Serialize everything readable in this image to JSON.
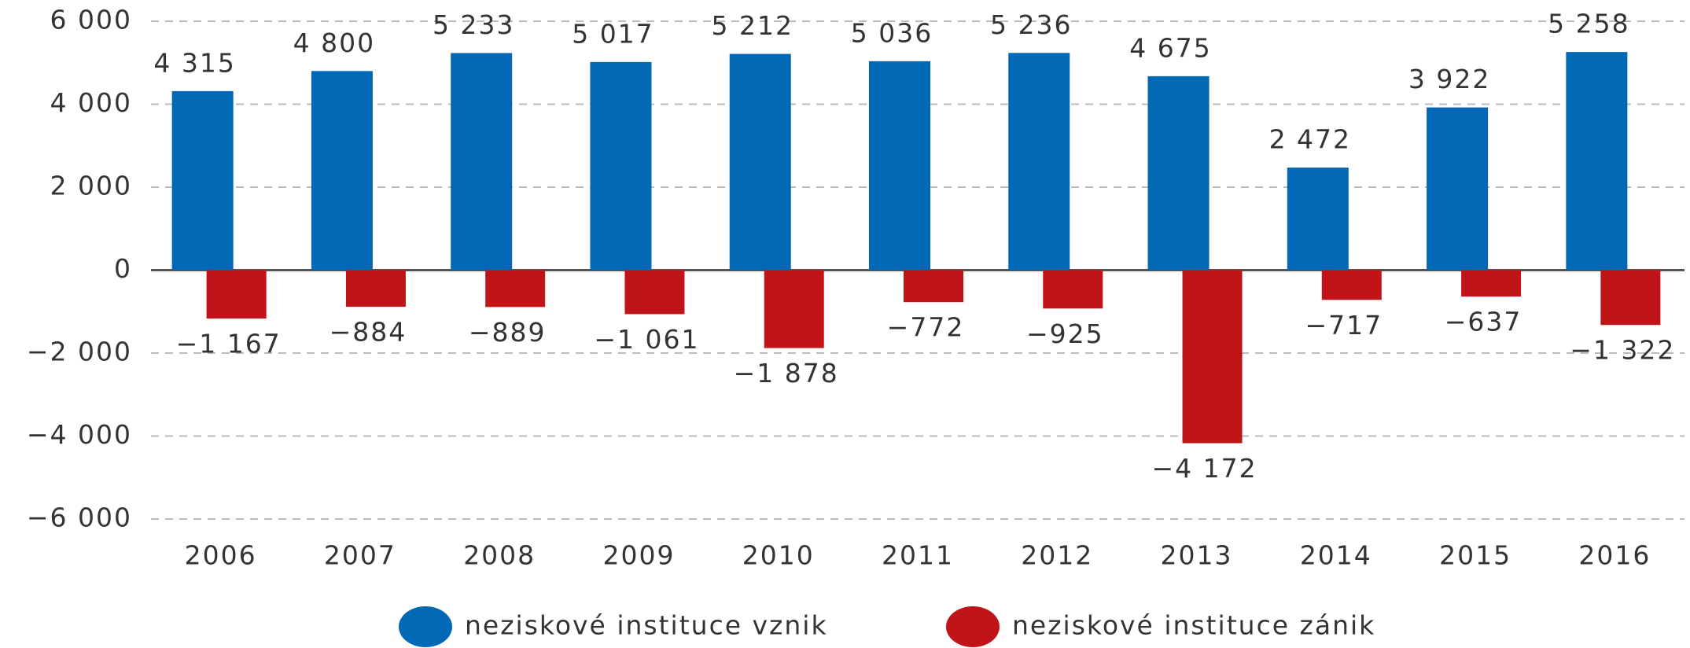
{
  "chart_data": {
    "type": "bar",
    "categories": [
      "2006",
      "2007",
      "2008",
      "2009",
      "2010",
      "2011",
      "2012",
      "2013",
      "2014",
      "2015",
      "2016"
    ],
    "series": [
      {
        "name": "neziskové instituce vznik",
        "color": "#0068b4",
        "values": [
          4315,
          4800,
          5233,
          5017,
          5212,
          5036,
          5236,
          4675,
          2472,
          3922,
          5258
        ],
        "value_labels": [
          "4 315",
          "4 800",
          "5 233",
          "5 017",
          "5 212",
          "5 036",
          "5 236",
          "4 675",
          "2 472",
          "3 922",
          "5 258"
        ]
      },
      {
        "name": "neziskové instituce zánik",
        "color": "#c01418",
        "values": [
          -1167,
          -884,
          -889,
          -1061,
          -1878,
          -772,
          -925,
          -4172,
          -717,
          -637,
          -1322
        ],
        "value_labels": [
          "−1 167",
          "−884",
          "−889",
          "−1 061",
          "−1 878",
          "−772",
          "−925",
          "−4 172",
          "−717",
          "−637",
          "−1 322"
        ]
      }
    ],
    "ylim": [
      -6000,
      6000
    ],
    "yticks": [
      {
        "value": -6000,
        "label": "−6 000"
      },
      {
        "value": -4000,
        "label": "−4 000"
      },
      {
        "value": -2000,
        "label": "−2 000"
      },
      0,
      {
        "value": 2000,
        "label": "2 000"
      },
      {
        "value": 4000,
        "label": "4 000"
      },
      {
        "value": 6000,
        "label": "6 000"
      }
    ],
    "grid": true,
    "legend": "bottom"
  }
}
